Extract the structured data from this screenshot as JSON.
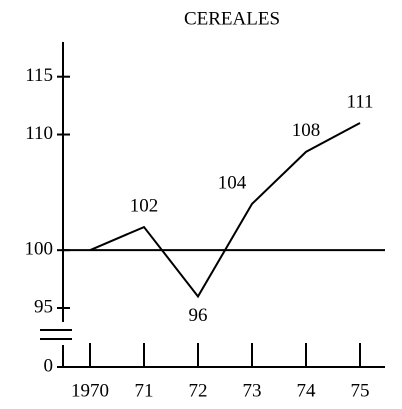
{
  "chart_data": {
    "type": "line",
    "title": "CEREALES",
    "categories": [
      "1970",
      "71",
      "72",
      "73",
      "74",
      "75"
    ],
    "values": [
      100,
      102,
      96,
      104,
      108.5,
      111
    ],
    "value_labels": [
      null,
      "102",
      "96",
      "104",
      "108",
      "111"
    ],
    "color": "#000000",
    "ylim": [
      0,
      118
    ],
    "yticks": [
      0,
      95,
      100,
      110,
      115
    ],
    "axis_break": [
      0,
      95
    ],
    "hline": 100
  }
}
